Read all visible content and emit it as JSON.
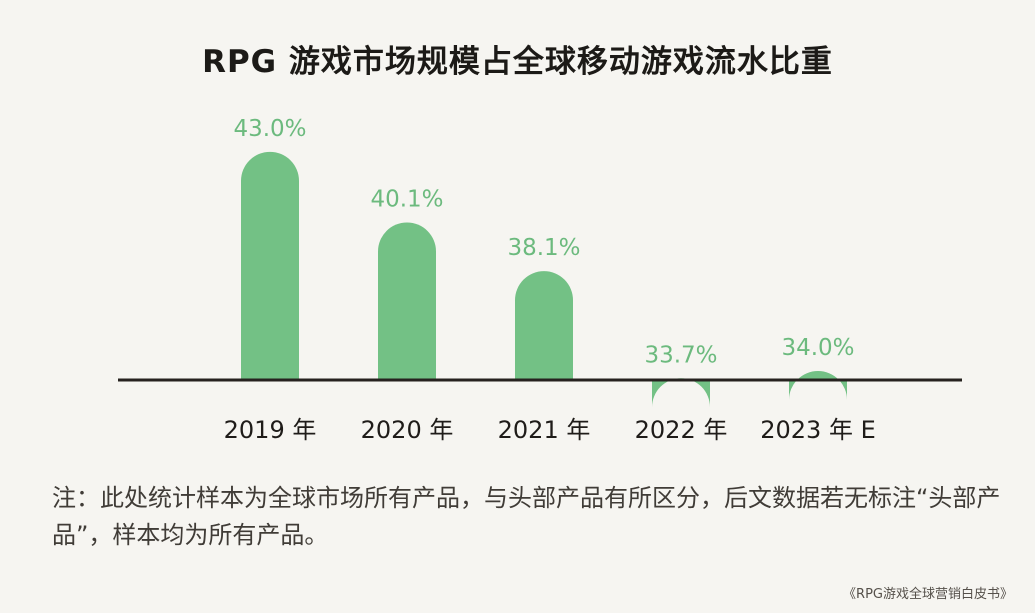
{
  "chart_data": {
    "type": "bar",
    "title": "RPG 游戏市场规模占全球移动游戏流水比重",
    "categories": [
      "2019 年",
      "2020 年",
      "2021 年",
      "2022 年",
      "2023 年 E"
    ],
    "values": [
      43.0,
      40.1,
      38.1,
      33.7,
      34.0
    ],
    "value_labels": [
      "43.0%",
      "40.1%",
      "38.1%",
      "33.7%",
      "34.0%"
    ],
    "bar_color": "#73c185",
    "label_color": "#6cba7e",
    "axis_color": "#26221f",
    "xlabel": "",
    "ylabel": "",
    "grid": false
  },
  "note": "注：此处统计样本为全球市场所有产品，与头部产品有所区分，后文数据若无标注“头部产品”，样本均为所有产品。",
  "source": "《RPG游戏全球营销白皮书》"
}
